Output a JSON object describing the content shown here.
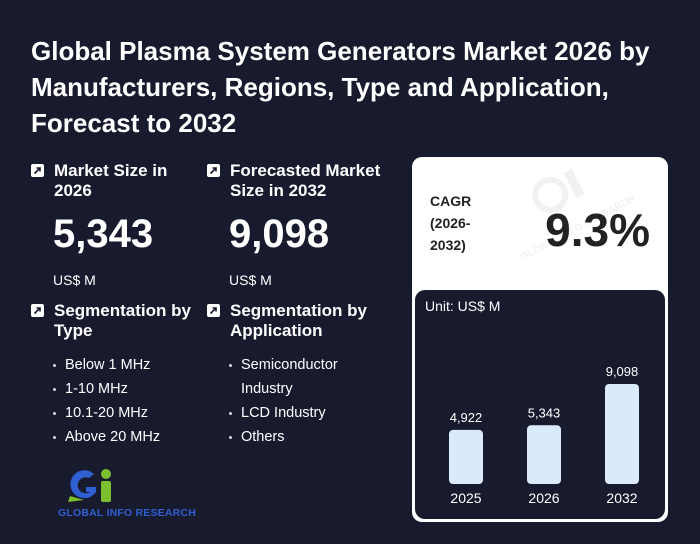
{
  "title": "Global Plasma System Generators Market 2026 by Manufacturers, Regions, Type and Application, Forecast to 2032",
  "market_size": {
    "label": "Market Size in 2026",
    "value": "5,343",
    "unit": "US$ M"
  },
  "forecast": {
    "label": "Forecasted Market Size in 2032",
    "value": "9,098",
    "unit": "US$ M"
  },
  "segmentation_type": {
    "label": "Segmentation by Type",
    "items": [
      "Below 1 MHz",
      "1-10 MHz",
      "10.1-20 MHz",
      "Above 20 MHz"
    ]
  },
  "segmentation_application": {
    "label": "Segmentation by Application",
    "items": [
      "Semiconductor Industry",
      "LCD Industry",
      "Others"
    ]
  },
  "cagr": {
    "label": "CAGR",
    "period": "(2026-2032)",
    "value": "9.3%"
  },
  "logo": {
    "name": "GLOBAL INFO RESEARCH"
  },
  "watermark": "GLOBAL INFO RESEARCH",
  "colors": {
    "background": "#181a2e",
    "bar_fill": "#dbe9fd",
    "logo_blue": "#2f5fd0",
    "logo_green": "#7cbf2e"
  },
  "chart_data": {
    "type": "bar",
    "unit_label": "Unit: US$ M",
    "categories": [
      "2025",
      "2026",
      "2032"
    ],
    "values": [
      4922,
      5343,
      9098
    ],
    "value_labels": [
      "4,922",
      "5,343",
      "9,098"
    ],
    "ylim": [
      0,
      9098
    ],
    "grid": false
  }
}
